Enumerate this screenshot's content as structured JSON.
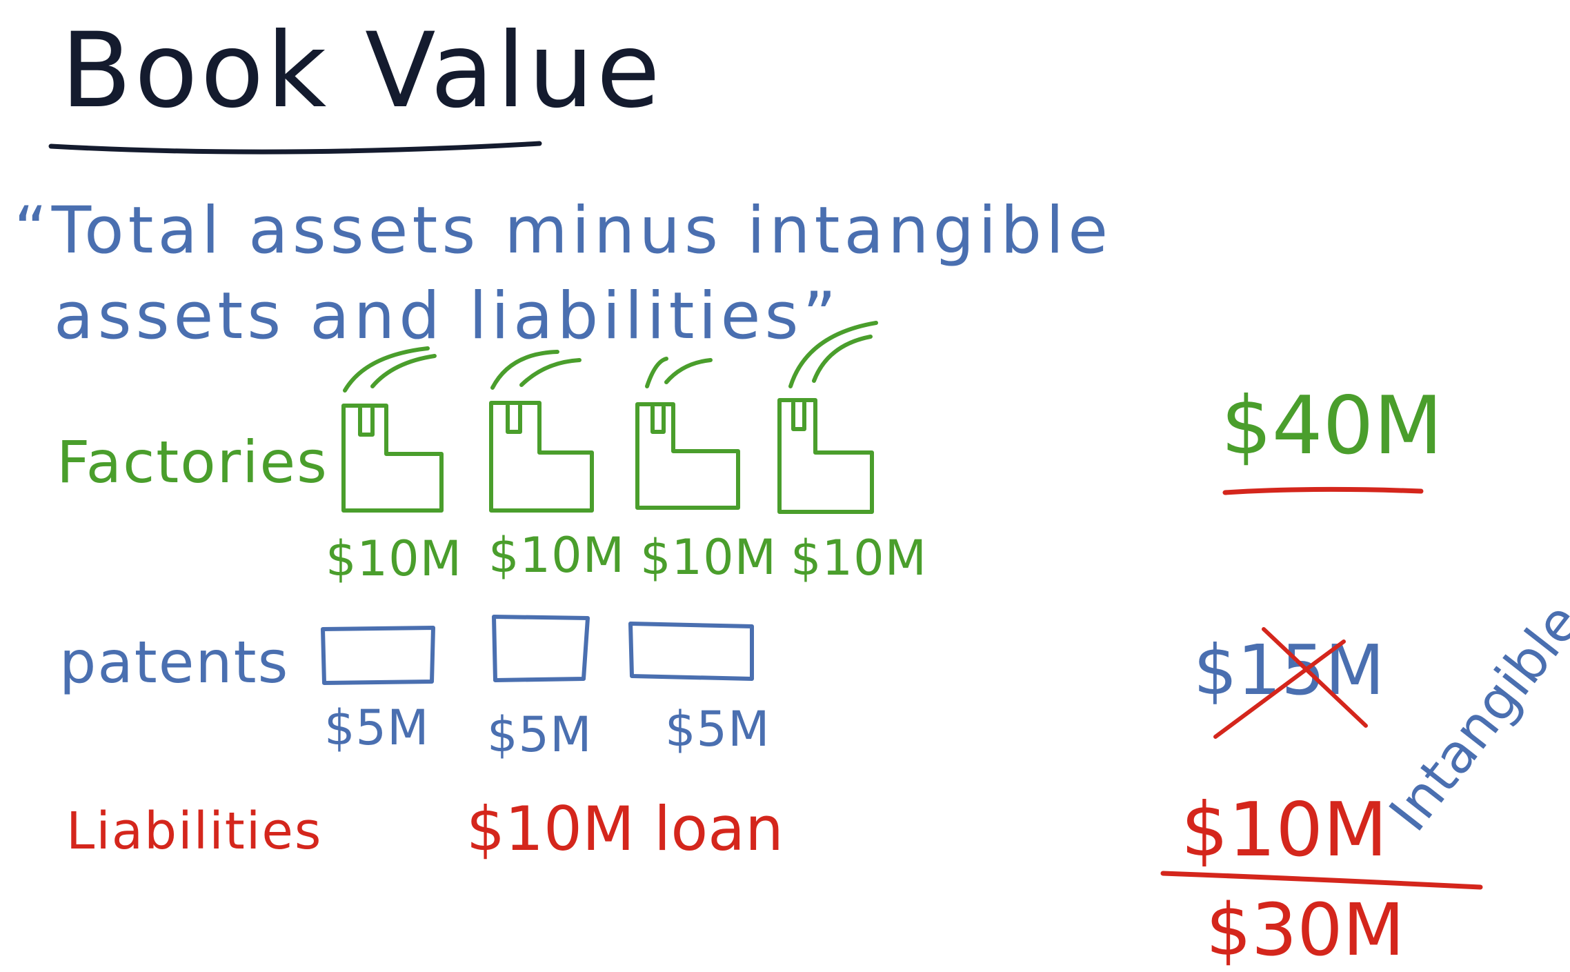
{
  "colors": {
    "title": "#141b2e",
    "blue": "#4a6fb0",
    "green": "#4a9e2c",
    "red": "#d4261c"
  },
  "title": "Book Value",
  "quote": {
    "line1": "“Total assets minus intangible",
    "line2": "assets and liabilities”"
  },
  "factories": {
    "label": "Factories",
    "icon": "factory-icon",
    "values": [
      "$10M",
      "$10M",
      "$10M",
      "$10M"
    ]
  },
  "patents": {
    "label": "patents",
    "icon": "patent-document-icon",
    "values": [
      "$5M",
      "$5M",
      "$5M"
    ]
  },
  "liabilities": {
    "label": "Liabilities",
    "value": "$10M loan"
  },
  "summary": {
    "total_assets": "$40M",
    "intangible_struck": "$15M",
    "intangible_label": "Intangible",
    "liabilities_total": "$10M",
    "result": "$30M"
  }
}
